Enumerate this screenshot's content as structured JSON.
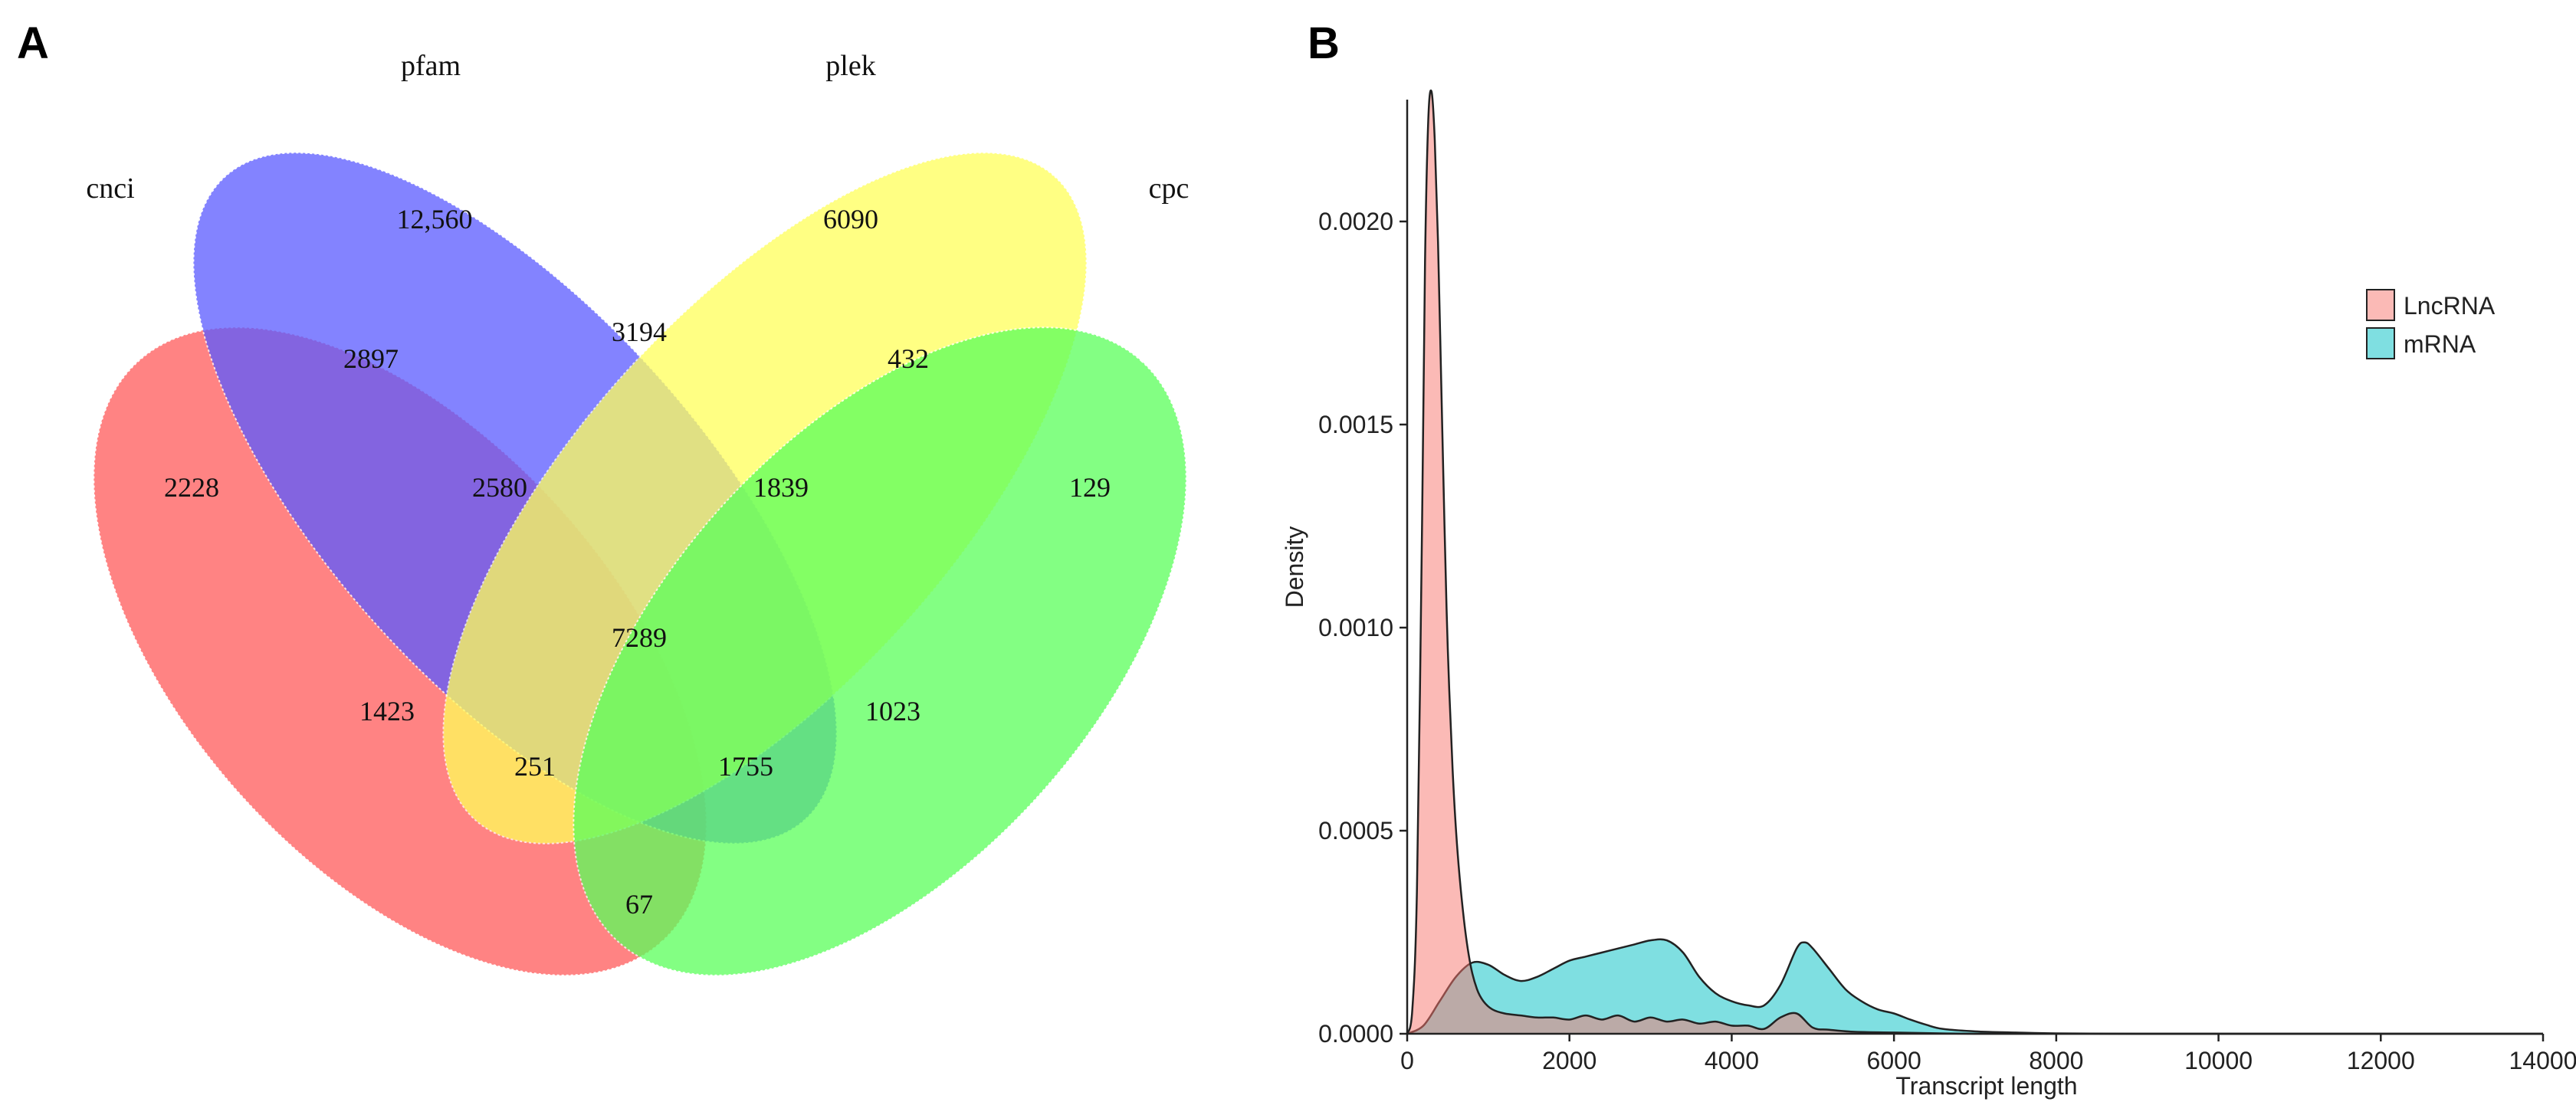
{
  "panels": {
    "a_letter": "A",
    "b_letter": "B"
  },
  "chart_data": [
    {
      "type": "venn",
      "panel": "A",
      "sets": [
        {
          "name": "cnci",
          "color": "#ff5a5a"
        },
        {
          "name": "pfam",
          "color": "#5a5aff"
        },
        {
          "name": "plek",
          "color": "#ffff5a"
        },
        {
          "name": "cpc",
          "color": "#5aff5a"
        }
      ],
      "regions": [
        {
          "sets": [
            "pfam"
          ],
          "value": "12,560"
        },
        {
          "sets": [
            "plek"
          ],
          "value": "6090"
        },
        {
          "sets": [
            "cnci",
            "pfam"
          ],
          "value": "2897"
        },
        {
          "sets": [
            "pfam",
            "plek"
          ],
          "value": "3194"
        },
        {
          "sets": [
            "plek",
            "cpc"
          ],
          "value": "432"
        },
        {
          "sets": [
            "cnci"
          ],
          "value": "2228"
        },
        {
          "sets": [
            "cnci",
            "pfam",
            "plek"
          ],
          "value": "2580"
        },
        {
          "sets": [
            "pfam",
            "plek",
            "cpc"
          ],
          "value": "1839"
        },
        {
          "sets": [
            "cpc"
          ],
          "value": "129"
        },
        {
          "sets": [
            "cnci",
            "pfam",
            "plek",
            "cpc"
          ],
          "value": "7289"
        },
        {
          "sets": [
            "cnci",
            "plek"
          ],
          "value": "1423"
        },
        {
          "sets": [
            "pfam",
            "cpc"
          ],
          "value": "1023"
        },
        {
          "sets": [
            "cnci",
            "plek",
            "cpc"
          ],
          "value": "251"
        },
        {
          "sets": [
            "cnci",
            "pfam",
            "cpc"
          ],
          "value": "1755"
        },
        {
          "sets": [
            "cnci",
            "cpc"
          ],
          "value": "67"
        }
      ]
    },
    {
      "type": "area",
      "panel": "B",
      "xlabel": "Transcript length",
      "ylabel": "Density",
      "xlim": [
        0,
        14000
      ],
      "ylim": [
        0,
        0.0023
      ],
      "xticks": [
        0,
        2000,
        4000,
        6000,
        8000,
        10000,
        12000,
        14000
      ],
      "xtick_labels": [
        "0",
        "2000",
        "4000",
        "6000",
        "8000",
        "10000",
        "12000",
        "14000"
      ],
      "yticks": [
        0,
        0.0005,
        0.001,
        0.0015,
        0.002
      ],
      "ytick_labels": [
        "0.0000",
        "0.0005",
        "0.0010",
        "0.0015",
        "0.0020"
      ],
      "grid": false,
      "legend": "top-right",
      "series": [
        {
          "name": "LncRNA",
          "color": "#f8766d",
          "x": [
            0,
            60,
            120,
            180,
            220,
            260,
            300,
            340,
            380,
            420,
            460,
            500,
            560,
            620,
            700,
            780,
            860,
            940,
            1050,
            1200,
            1400,
            1600,
            1800,
            2000,
            2200,
            2400,
            2600,
            2800,
            3000,
            3200,
            3400,
            3600,
            3800,
            4000,
            4200,
            4400,
            4600,
            4800,
            5000,
            5200,
            5500,
            6000,
            7000,
            8000,
            14000
          ],
          "y": [
            0,
            5e-05,
            0.00035,
            0.0012,
            0.0019,
            0.00225,
            0.00232,
            0.0022,
            0.00195,
            0.0016,
            0.00125,
            0.00095,
            0.00065,
            0.00045,
            0.00028,
            0.00017,
            0.00011,
            8e-05,
            6e-05,
            5e-05,
            4.5e-05,
            4e-05,
            4e-05,
            3.5e-05,
            4.5e-05,
            3.5e-05,
            4.5e-05,
            3e-05,
            4e-05,
            3e-05,
            3.5e-05,
            2.5e-05,
            3e-05,
            2e-05,
            2e-05,
            1.2e-05,
            4e-05,
            5e-05,
            1.5e-05,
            1e-05,
            5e-06,
            3e-06,
            0,
            0,
            0
          ]
        },
        {
          "name": "mRNA",
          "color": "#00bfc4",
          "x": [
            0,
            200,
            400,
            600,
            800,
            1000,
            1200,
            1400,
            1600,
            1800,
            2000,
            2200,
            2400,
            2600,
            2800,
            3000,
            3200,
            3400,
            3600,
            3800,
            4000,
            4200,
            4400,
            4600,
            4800,
            4900,
            5000,
            5200,
            5400,
            5600,
            5800,
            6000,
            6200,
            6400,
            6600,
            7000,
            7500,
            8000,
            9000,
            10000,
            14000
          ],
          "y": [
            0,
            2e-05,
            8e-05,
            0.00014,
            0.000175,
            0.00017,
            0.000145,
            0.00013,
            0.00014,
            0.00016,
            0.00018,
            0.00019,
            0.0002,
            0.00021,
            0.00022,
            0.00023,
            0.00023,
            0.0002,
            0.00014,
            0.0001,
            8e-05,
            7e-05,
            7e-05,
            0.00012,
            0.00021,
            0.000225,
            0.00021,
            0.00016,
            0.00011,
            8e-05,
            6e-05,
            5e-05,
            3.5e-05,
            2.2e-05,
            1.2e-05,
            6e-06,
            3e-06,
            1e-06,
            0,
            0,
            0
          ]
        }
      ]
    }
  ]
}
